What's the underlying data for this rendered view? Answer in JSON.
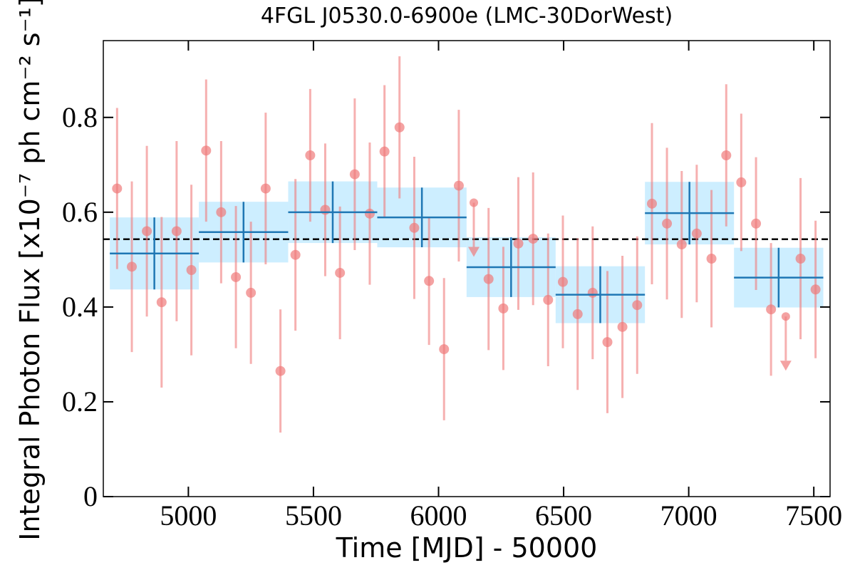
{
  "chart_data": {
    "type": "lightcurve",
    "title": "4FGL J0530.0-6900e (LMC-30DorWest)",
    "x_label": "Time [MJD] - 50000",
    "y_label": "Integral Photon Flux [x10⁻⁷ ph cm⁻² s⁻¹]",
    "xlim": [
      4660,
      7565
    ],
    "ylim": [
      0,
      0.962
    ],
    "xticks": [
      5000,
      5500,
      6000,
      6500,
      7000,
      7500
    ],
    "yticks": [
      0,
      0.2,
      0.4,
      0.6,
      0.8
    ],
    "mean": 0.543,
    "short_bins": {
      "name": "short",
      "color": "#f07b7b",
      "x": [
        4715,
        4774,
        4834,
        4893,
        4953,
        5012,
        5071,
        5131,
        5190,
        5250,
        5309,
        5368,
        5428,
        5487,
        5547,
        5606,
        5665,
        5725,
        5784,
        5844,
        5903,
        5962,
        6022,
        6081,
        6141,
        6200,
        6259,
        6319,
        6378,
        6438,
        6497,
        6556,
        6616,
        6675,
        6735,
        6794,
        6853,
        6913,
        6972,
        7032,
        7091,
        7150,
        7210,
        7269,
        7329,
        7388,
        7447,
        7507
      ],
      "values": [
        0.65,
        0.485,
        0.56,
        0.41,
        0.56,
        0.478,
        0.73,
        0.6,
        0.463,
        0.43,
        0.65,
        0.265,
        0.51,
        0.72,
        0.605,
        0.472,
        0.68,
        0.597,
        0.728,
        0.779,
        0.567,
        0.455,
        0.311,
        0.656,
        null,
        0.459,
        0.397,
        0.534,
        0.544,
        0.415,
        0.453,
        0.385,
        0.43,
        0.326,
        0.358,
        0.404,
        0.618,
        0.576,
        0.532,
        0.555,
        0.502,
        0.72,
        0.663,
        0.576,
        0.395,
        null,
        0.502,
        0.437
      ],
      "errors": [
        0.17,
        0.18,
        0.18,
        0.18,
        0.19,
        0.18,
        0.15,
        0.15,
        0.15,
        0.15,
        0.16,
        0.13,
        0.16,
        0.14,
        0.14,
        0.14,
        0.16,
        0.15,
        0.14,
        0.15,
        0.15,
        0.135,
        0.15,
        0.16,
        null,
        0.15,
        0.13,
        0.14,
        0.14,
        0.14,
        0.14,
        0.16,
        0.14,
        0.15,
        0.15,
        0.145,
        0.17,
        0.16,
        0.155,
        0.145,
        0.145,
        0.15,
        0.145,
        0.14,
        0.14,
        null,
        0.17,
        0.145
      ],
      "upper_limits": [
        null,
        null,
        null,
        null,
        null,
        null,
        null,
        null,
        null,
        null,
        null,
        null,
        null,
        null,
        null,
        null,
        null,
        null,
        null,
        null,
        null,
        null,
        null,
        null,
        0.62,
        null,
        null,
        null,
        null,
        null,
        null,
        null,
        null,
        null,
        null,
        null,
        null,
        null,
        null,
        null,
        null,
        null,
        null,
        null,
        null,
        0.38,
        null,
        null
      ]
    },
    "long_bins": {
      "name": "long",
      "color": "#1f77b4",
      "fill": "#cdeeff",
      "bin_edges": [
        4686,
        5042,
        5399,
        5755,
        6112,
        6468,
        6825,
        7181,
        7538
      ],
      "values": [
        0.513,
        0.558,
        0.6,
        0.589,
        0.484,
        0.426,
        0.598,
        0.462
      ],
      "errors": [
        0.076,
        0.064,
        0.065,
        0.063,
        0.063,
        0.06,
        0.066,
        0.063
      ]
    }
  }
}
